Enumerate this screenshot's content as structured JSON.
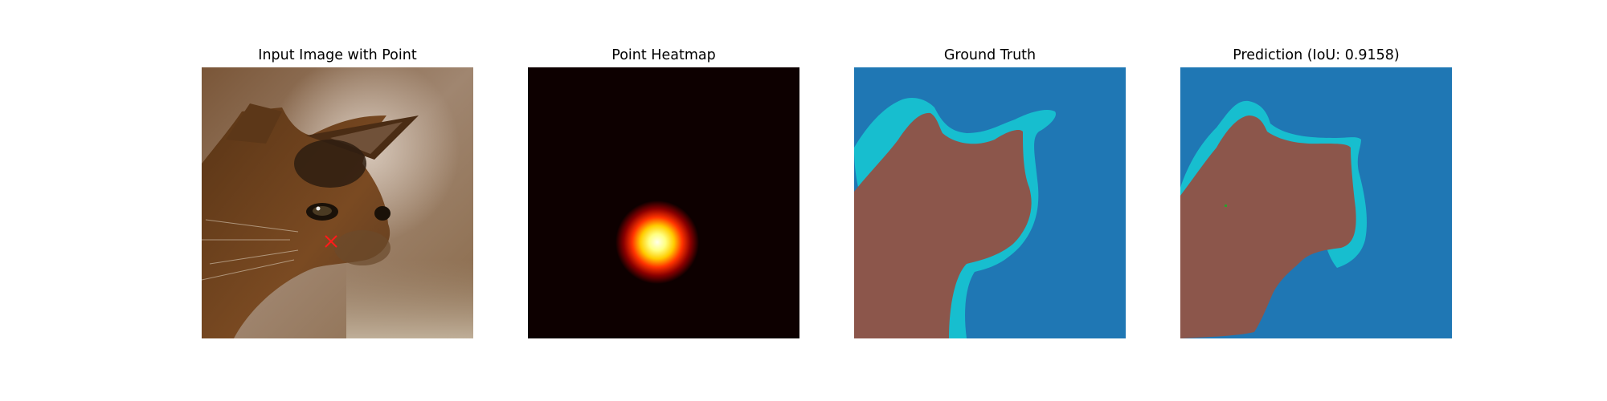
{
  "panels": [
    {
      "title": "Input Image with Point",
      "image": "cat-photo",
      "marker": "point-marker-x",
      "marker_color": "#ff1a1a"
    },
    {
      "title": "Point Heatmap",
      "image": "gaussian-heatmap"
    },
    {
      "title": "Ground Truth",
      "image": "segmentation-mask"
    },
    {
      "title": "Prediction (IoU: 0.9158)",
      "image": "segmentation-mask"
    }
  ],
  "colors": {
    "background_class": "#1f77b4",
    "foreground_class": "#8c564b",
    "boundary_class": "#17becf",
    "heatmap_bg": "#0d0000",
    "marker": "#ff1a1a"
  }
}
